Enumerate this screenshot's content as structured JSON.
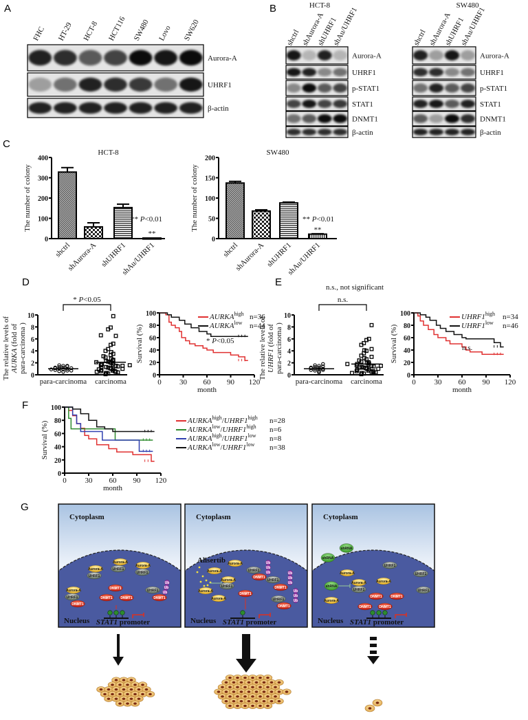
{
  "panel_labels": {
    "a": "A",
    "b": "B",
    "c": "C",
    "d": "D",
    "e": "E",
    "f": "F",
    "g": "G"
  },
  "panel_a": {
    "lanes": [
      "FHC",
      "HT-29",
      "HCT-8",
      "HCT116",
      "SW480",
      "Lovo",
      "SW620"
    ],
    "blots": [
      {
        "label": "Aurora-A",
        "intensity": [
          0.85,
          0.8,
          0.6,
          0.7,
          0.95,
          0.9,
          0.95
        ]
      },
      {
        "label": "UHRF1",
        "intensity": [
          0.3,
          0.5,
          0.85,
          0.8,
          0.75,
          0.5,
          0.9
        ]
      },
      {
        "label": "β-actin",
        "intensity": [
          0.85,
          0.85,
          0.85,
          0.85,
          0.85,
          0.85,
          0.85
        ]
      }
    ]
  },
  "panel_b": {
    "cell_lines": [
      {
        "title": "HCT-8",
        "lanes": [
          "shctrl",
          "shAurora-A",
          "shUHRF1",
          "shAu/UHRF1"
        ],
        "blots": [
          {
            "label": "Aurora-A",
            "intensity": [
              0.9,
              0.2,
              0.85,
              0.2
            ]
          },
          {
            "label": "UHRF1",
            "intensity": [
              0.9,
              0.85,
              0.4,
              0.5
            ]
          },
          {
            "label": "p-STAT1",
            "intensity": [
              0.4,
              0.95,
              0.6,
              0.7
            ]
          },
          {
            "label": "STAT1",
            "intensity": [
              0.7,
              0.9,
              0.7,
              0.75
            ]
          },
          {
            "label": "DNMT1",
            "intensity": [
              0.5,
              0.6,
              0.95,
              0.95
            ]
          },
          {
            "label": "β-actin",
            "intensity": [
              0.8,
              0.8,
              0.8,
              0.8
            ]
          }
        ]
      },
      {
        "title": "SW480",
        "lanes": [
          "shctrl",
          "shAurora-A",
          "shUHRF1",
          "shAu/UHRF1"
        ],
        "blots": [
          {
            "label": "Aurora-A",
            "intensity": [
              0.85,
              0.3,
              0.9,
              0.3
            ]
          },
          {
            "label": "UHRF1",
            "intensity": [
              0.8,
              0.8,
              0.4,
              0.5
            ]
          },
          {
            "label": "p-STAT1",
            "intensity": [
              0.5,
              0.85,
              0.6,
              0.7
            ]
          },
          {
            "label": "STAT1",
            "intensity": [
              0.85,
              0.9,
              0.6,
              0.85
            ]
          },
          {
            "label": "DNMT1",
            "intensity": [
              0.6,
              0.3,
              0.95,
              0.8
            ]
          },
          {
            "label": "β-actin",
            "intensity": [
              0.85,
              0.85,
              0.85,
              0.85
            ]
          }
        ]
      }
    ]
  },
  "chart_data": [
    {
      "id": "c1",
      "type": "bar",
      "title": "HCT-8",
      "ylabel": "The number of colony",
      "categories": [
        "shctrl",
        "shAurora-A",
        "shUHRF1",
        "shAu/UHRF1"
      ],
      "values": [
        328,
        58,
        153,
        3
      ],
      "errors": [
        22,
        20,
        17,
        0
      ],
      "ylim": [
        0,
        400
      ],
      "yticks": [
        0,
        100,
        200,
        300,
        400
      ],
      "bar_marks": [
        "",
        "",
        "",
        "**"
      ],
      "annotation": {
        "prefix": "** ",
        "p": "P",
        "suffix": "<0.01"
      }
    },
    {
      "id": "c2",
      "type": "bar",
      "title": "SW480",
      "ylabel": "The number of colony",
      "categories": [
        "shctrl",
        "shAurora-A",
        "shUHRF1",
        "shAu/UHRF1"
      ],
      "values": [
        137,
        68,
        88,
        11
      ],
      "errors": [
        4,
        3,
        2,
        1
      ],
      "ylim": [
        0,
        200
      ],
      "yticks": [
        0,
        50,
        100,
        150,
        200
      ],
      "bar_marks": [
        "",
        "",
        "",
        "**"
      ],
      "annotation": {
        "prefix": "** ",
        "p": "P",
        "suffix": "<0.01"
      }
    },
    {
      "id": "d1",
      "type": "scatter",
      "ylabel": {
        "l1": "The relative levels of",
        "gene": "AURKA",
        "l2": " (fold of",
        "l3": "para-carcinoma )"
      },
      "categories": [
        "para-carcinoma",
        "carcinoma"
      ],
      "ylim": [
        0,
        10
      ],
      "yticks": [
        0,
        2,
        4,
        6,
        8,
        10
      ],
      "means": [
        1.0,
        2.1
      ],
      "significance": {
        "prefix": "* ",
        "p": "P",
        "suffix": "<0.05"
      },
      "points": [
        [
          0.5,
          0.6,
          0.7,
          0.8,
          0.9,
          1.0,
          1.0,
          1.1,
          1.1,
          1.2,
          1.3,
          1.4,
          1.5,
          1.6,
          0.7,
          0.9,
          1.2,
          1.5
        ],
        [
          0.1,
          0.2,
          0.3,
          0.4,
          0.5,
          0.6,
          0.7,
          0.8,
          0.9,
          1.0,
          1.1,
          1.2,
          1.3,
          1.4,
          1.5,
          1.6,
          1.7,
          1.8,
          1.9,
          2.0,
          2.1,
          2.2,
          2.3,
          2.5,
          2.7,
          2.9,
          3.1,
          3.3,
          3.5,
          3.8,
          4.0,
          4.3,
          5.0,
          5.2,
          6.5,
          6.6,
          7.6,
          7.9,
          9.8,
          0.3,
          0.6,
          0.9,
          1.2,
          1.5,
          1.8,
          2.1,
          2.4,
          0.5,
          1.0,
          1.6
        ]
      ]
    },
    {
      "id": "d2",
      "type": "line",
      "step": true,
      "ylabel": "Survival (%)",
      "xlabel": "month",
      "xlim": [
        0,
        120
      ],
      "xticks": [
        0,
        30,
        60,
        90,
        120
      ],
      "ylim": [
        0,
        100
      ],
      "yticks": [
        0,
        20,
        40,
        60,
        80,
        100
      ],
      "annotation": {
        "prefix": "* ",
        "p": "P",
        "suffix": "<0.05"
      },
      "series": [
        {
          "gene": "AURKA",
          "level": "high",
          "n": "n=36",
          "color": "#e03030",
          "points": [
            [
              0,
              100
            ],
            [
              8,
              97
            ],
            [
              12,
              85
            ],
            [
              15,
              80
            ],
            [
              20,
              76
            ],
            [
              25,
              70
            ],
            [
              28,
              60
            ],
            [
              33,
              55
            ],
            [
              38,
              50
            ],
            [
              45,
              47
            ],
            [
              55,
              43
            ],
            [
              60,
              40
            ],
            [
              68,
              36
            ],
            [
              90,
              32
            ],
            [
              100,
              29
            ],
            [
              108,
              23
            ],
            [
              112,
              23
            ]
          ]
        },
        {
          "gene": "AURKA",
          "level": "low",
          "n": "n=44",
          "color": "#111111",
          "points": [
            [
              0,
              100
            ],
            [
              10,
              97
            ],
            [
              15,
              93
            ],
            [
              25,
              88
            ],
            [
              32,
              82
            ],
            [
              40,
              76
            ],
            [
              50,
              70
            ],
            [
              60,
              66
            ],
            [
              65,
              62
            ],
            [
              112,
              62
            ]
          ]
        }
      ]
    },
    {
      "id": "e1",
      "type": "scatter",
      "title": "n.s., not significant",
      "ylabel": {
        "l1": "The relative levels of",
        "gene": "UHRF1",
        "l2": " (fold of",
        "l3": "para-carcinoma )"
      },
      "categories": [
        "para-carcinoma",
        "carcinoma"
      ],
      "ylim": [
        0,
        10
      ],
      "yticks": [
        0,
        2,
        4,
        6,
        8,
        10
      ],
      "means": [
        1.0,
        1.8
      ],
      "significance": {
        "prefix": "",
        "p": "",
        "suffix": "n.s."
      },
      "points": [
        [
          0.4,
          0.6,
          0.7,
          0.8,
          0.9,
          1.0,
          1.0,
          1.1,
          1.2,
          1.3,
          1.4,
          1.5,
          1.6,
          1.8,
          0.8,
          1.2
        ],
        [
          0.1,
          0.2,
          0.3,
          0.4,
          0.5,
          0.6,
          0.7,
          0.8,
          0.9,
          1.0,
          1.1,
          1.2,
          1.3,
          1.4,
          1.5,
          1.6,
          1.7,
          1.8,
          1.9,
          2.0,
          2.2,
          2.4,
          2.6,
          2.8,
          3.0,
          3.2,
          3.6,
          4.0,
          4.1,
          4.3,
          5.0,
          5.3,
          5.8,
          6.0,
          8.3,
          0.3,
          0.6,
          0.9,
          1.2,
          1.5,
          1.8,
          2.1,
          0.4,
          1.0
        ]
      ]
    },
    {
      "id": "e2",
      "type": "line",
      "step": true,
      "ylabel": "Survival (%)",
      "xlabel": "month",
      "xlim": [
        0,
        120
      ],
      "xticks": [
        0,
        30,
        60,
        90,
        120
      ],
      "ylim": [
        0,
        100
      ],
      "yticks": [
        0,
        20,
        40,
        60,
        80,
        100
      ],
      "annotation": {
        "prefix": "",
        "p": "",
        "suffix": "n.s."
      },
      "series": [
        {
          "gene": "UHRF1",
          "level": "high",
          "n": "n=34",
          "color": "#e03030",
          "points": [
            [
              0,
              100
            ],
            [
              5,
              95
            ],
            [
              8,
              87
            ],
            [
              12,
              80
            ],
            [
              18,
              73
            ],
            [
              25,
              65
            ],
            [
              30,
              60
            ],
            [
              40,
              55
            ],
            [
              45,
              50
            ],
            [
              55,
              50
            ],
            [
              60,
              45
            ],
            [
              65,
              40
            ],
            [
              70,
              37
            ],
            [
              85,
              33
            ],
            [
              112,
              33
            ]
          ]
        },
        {
          "gene": "UHRF1",
          "level": "low",
          "n": "n=46",
          "color": "#111111",
          "points": [
            [
              0,
              100
            ],
            [
              8,
              97
            ],
            [
              15,
              93
            ],
            [
              20,
              88
            ],
            [
              28,
              80
            ],
            [
              33,
              75
            ],
            [
              40,
              70
            ],
            [
              50,
              65
            ],
            [
              60,
              60
            ],
            [
              65,
              58
            ],
            [
              95,
              58
            ],
            [
              100,
              52
            ],
            [
              108,
              45
            ],
            [
              112,
              45
            ]
          ]
        }
      ]
    },
    {
      "id": "f1",
      "type": "line",
      "step": true,
      "ylabel": "Survival (%)",
      "xlabel": "month",
      "xlim": [
        0,
        120
      ],
      "xticks": [
        0,
        30,
        60,
        90,
        120
      ],
      "ylim": [
        0,
        100
      ],
      "yticks": [
        0,
        20,
        40,
        60,
        80,
        100
      ],
      "series": [
        {
          "gene": "AURKA",
          "level": "high",
          "gene2": "UHRF1",
          "level2": "high",
          "n": "n=28",
          "color": "#e03030",
          "points": [
            [
              0,
              100
            ],
            [
              5,
              95
            ],
            [
              10,
              87
            ],
            [
              15,
              75
            ],
            [
              20,
              68
            ],
            [
              25,
              57
            ],
            [
              30,
              52
            ],
            [
              40,
              43
            ],
            [
              55,
              37
            ],
            [
              65,
              32
            ],
            [
              85,
              28
            ],
            [
              105,
              28
            ],
            [
              108,
              18
            ],
            [
              112,
              18
            ]
          ]
        },
        {
          "gene": "AURKA",
          "level": "low",
          "gene2": "UHRF1",
          "level2": "high",
          "n": "n=6",
          "color": "#2e8b2e",
          "points": [
            [
              0,
              100
            ],
            [
              5,
              83
            ],
            [
              8,
              67
            ],
            [
              63,
              67
            ],
            [
              63,
              50
            ],
            [
              110,
              50
            ]
          ]
        },
        {
          "gene": "AURKA",
          "level": "high",
          "gene2": "UHRF1",
          "level2": "low",
          "n": "n=8",
          "color": "#3040b0",
          "points": [
            [
              0,
              100
            ],
            [
              10,
              88
            ],
            [
              15,
              75
            ],
            [
              20,
              63
            ],
            [
              47,
              63
            ],
            [
              47,
              50
            ],
            [
              93,
              50
            ],
            [
              93,
              33
            ],
            [
              110,
              33
            ]
          ]
        },
        {
          "gene": "AURKA",
          "level": "low",
          "gene2": "UHRF1",
          "level2": "low",
          "n": "n=38",
          "color": "#111111",
          "points": [
            [
              0,
              100
            ],
            [
              10,
              97
            ],
            [
              20,
              90
            ],
            [
              30,
              80
            ],
            [
              40,
              70
            ],
            [
              50,
              67
            ],
            [
              60,
              63
            ],
            [
              112,
              63
            ]
          ]
        }
      ]
    }
  ],
  "panel_g": {
    "cytoplasm": "Cytoplasm",
    "nucleus": "Nucleus",
    "promoter_gene": "STAT1",
    "promoter_suffix": " promoter",
    "colors": {
      "aurora": "#f2c43a",
      "uhrf1": "#8a9a88",
      "dnmt1": "#e0301e",
      "ub": "#a040b0",
      "shrna": "#4caf3c",
      "methyl": "#2e8b2e",
      "nucleus": "#4a5aa0"
    },
    "panels": [
      {
        "molecules": [
          "Aurora-A",
          "UHRF1",
          "Aurora-A",
          "UHRF1",
          "Aurora-A",
          "UHRF1",
          "Aurora-A",
          "UHRF1",
          "DNMT1",
          "DNMT1",
          "DNMT1",
          "DNMT1",
          "UHRF1",
          "DNMT1",
          "Ub",
          "Ub",
          "Ub"
        ]
      },
      {
        "drug": "Alisertib",
        "molecules": [
          "Aurora-A",
          "Aurora-A",
          "Aurora-A",
          "UHRF1",
          "Aurora-A",
          "Aurora-A",
          "UHRF1",
          "DNMT1",
          "UHRF1",
          "DNMT1",
          "DNMT1",
          "UHRF1",
          "DNMT1",
          "Ub",
          "Ub",
          "Ub",
          "Ub",
          "Ub",
          "Ub",
          "Ub",
          "Ub",
          "Ub"
        ]
      },
      {
        "molecules": [
          "shRNA",
          "shRNA",
          "UHRF1",
          "Aurora-A",
          "shRNA",
          "Aurora-A",
          "UHRF1",
          "Aurora-A",
          "Aurora-A",
          "DNMT1",
          "DNMT1",
          "DNMT1",
          "DNMT1",
          "UHRF1",
          "UHRF1"
        ]
      }
    ]
  }
}
